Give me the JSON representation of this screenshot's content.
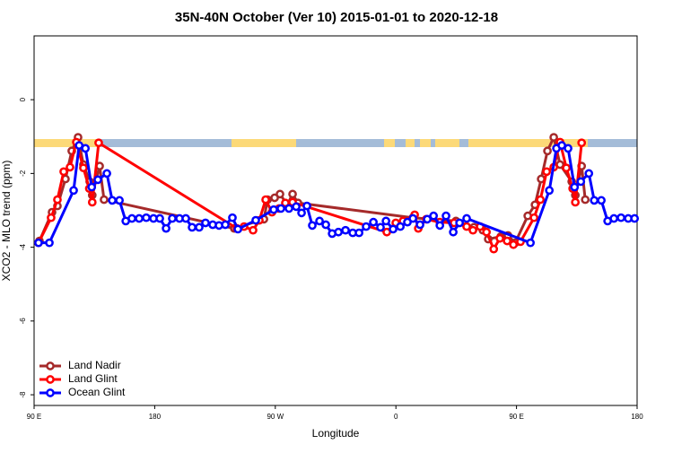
{
  "chart_data": {
    "type": "line",
    "title": "35N-40N October (Ver 10)   2015-01-01 to 2020-12-18",
    "x_label": "Longitude",
    "y_label": "XCO2 - MLO trend (ppm)",
    "xlim": [
      90,
      540
    ],
    "xticks": [
      {
        "value": 90,
        "label": "90 E"
      },
      {
        "value": 180,
        "label": "180"
      },
      {
        "value": 270,
        "label": "90 W"
      },
      {
        "value": 360,
        "label": "0"
      },
      {
        "value": 450,
        "label": "90 E"
      },
      {
        "value": 540,
        "label": "180"
      }
    ],
    "ylim": [
      -8.29,
      1.73
    ],
    "yticks": [
      0,
      -2,
      -4,
      -6,
      -8
    ],
    "legend": "bottom-left",
    "series": [
      {
        "name": "Land Nadir",
        "color": "#a52a2a",
        "x": [
          94,
          103.4,
          107.4,
          113.4,
          118.1,
          122.8,
          126.8,
          131.5,
          133.4,
          138.9,
          142.2,
          239.4,
          261.5,
          264.2,
          269.5,
          273.5,
          278.9,
          282.9,
          286.9,
          372.7,
          404.8,
          418.2,
          424.9,
          428.9,
          438.3,
          443.6,
          449,
          458.4,
          463.8,
          468.4,
          473.1,
          477.8,
          482.5,
          491.2,
          493.9,
          498.6,
          501.3
        ],
        "values": [
          -3.83,
          -3.05,
          -2.88,
          -2.15,
          -1.39,
          -1.02,
          -1.76,
          -2.22,
          -2.59,
          -1.8,
          -2.71,
          -3.49,
          -3.24,
          -2.71,
          -2.66,
          -2.56,
          -2.85,
          -2.56,
          -2.8,
          -3.2,
          -3.29,
          -3.46,
          -3.54,
          -3.78,
          -3.71,
          -3.68,
          -3.88,
          -3.15,
          -2.85,
          -2.15,
          -1.39,
          -1.02,
          -1.76,
          -2.22,
          -2.59,
          -1.8,
          -2.71
        ]
      },
      {
        "name": "Land Glint",
        "color": "#ff0000",
        "x": [
          93.3,
          102.7,
          107.4,
          112.1,
          116.8,
          121.5,
          126.8,
          131.2,
          133.4,
          138.2,
          241.4,
          246.7,
          253.4,
          258.1,
          262.8,
          267.5,
          272.8,
          277.5,
          282.9,
          353.2,
          359.9,
          365.3,
          374,
          376.7,
          382.7,
          392.8,
          403.4,
          412.8,
          417.5,
          422.9,
          427.6,
          433,
          437.6,
          443,
          447.7,
          453,
          463.1,
          467.8,
          472.5,
          477.8,
          482.5,
          487.2,
          491.9,
          493.9,
          498.6
        ],
        "values": [
          -3.88,
          -3.2,
          -2.71,
          -1.95,
          -1.83,
          -1.15,
          -1.85,
          -2.41,
          -2.78,
          -1.17,
          -3.49,
          -3.44,
          -3.54,
          -3.27,
          -2.71,
          -3.05,
          -2.95,
          -2.8,
          -2.78,
          -3.59,
          -3.34,
          -3.29,
          -3.12,
          -3.49,
          -3.24,
          -3.32,
          -3.34,
          -3.44,
          -3.54,
          -3.44,
          -3.59,
          -4.05,
          -3.76,
          -3.83,
          -3.93,
          -3.85,
          -3.2,
          -2.71,
          -1.95,
          -1.83,
          -1.15,
          -1.85,
          -2.41,
          -2.78,
          -1.17
        ]
      },
      {
        "name": "Ocean Glint",
        "color": "#0000ff",
        "x": [
          93.3,
          101.4,
          119.5,
          123.6,
          128.3,
          133,
          137.6,
          144.3,
          148.3,
          153.7,
          158.4,
          163,
          168.4,
          173.7,
          179.1,
          183.8,
          188.5,
          193.1,
          198.5,
          203.2,
          207.9,
          213.2,
          217.9,
          223.3,
          228,
          232.7,
          238,
          242.1,
          255.4,
          268.8,
          274.2,
          280.2,
          285.6,
          289.6,
          293.6,
          297.6,
          303,
          307.7,
          312.4,
          317.1,
          322.4,
          327.8,
          332.5,
          337.8,
          343.2,
          348.5,
          352.6,
          357.9,
          363.3,
          368.6,
          372.7,
          378,
          383.4,
          388.1,
          392.8,
          397.4,
          402.8,
          407.5,
          412.8,
          460.4,
          474.5,
          479.8,
          483.8,
          488.5,
          493.3,
          498,
          504,
          508,
          513.3,
          518,
          522.7,
          528,
          533.4,
          538.1
        ],
        "values": [
          -3.88,
          -3.88,
          -2.46,
          -1.24,
          -1.32,
          -2.37,
          -2.17,
          -2.0,
          -2.73,
          -2.73,
          -3.29,
          -3.22,
          -3.22,
          -3.2,
          -3.22,
          -3.22,
          -3.49,
          -3.22,
          -3.22,
          -3.22,
          -3.46,
          -3.46,
          -3.34,
          -3.39,
          -3.41,
          -3.39,
          -3.2,
          -3.51,
          -3.27,
          -2.98,
          -2.95,
          -2.95,
          -2.9,
          -3.07,
          -2.88,
          -3.41,
          -3.29,
          -3.39,
          -3.63,
          -3.59,
          -3.54,
          -3.61,
          -3.61,
          -3.44,
          -3.32,
          -3.46,
          -3.29,
          -3.51,
          -3.44,
          -3.32,
          -3.22,
          -3.39,
          -3.24,
          -3.15,
          -3.41,
          -3.15,
          -3.59,
          -3.34,
          -3.22,
          -3.88,
          -2.46,
          -1.32,
          -1.24,
          -1.32,
          -2.37,
          -2.22,
          -2.0,
          -2.73,
          -2.73,
          -3.29,
          -3.22,
          -3.2,
          -3.22,
          -3.22
        ]
      }
    ]
  }
}
